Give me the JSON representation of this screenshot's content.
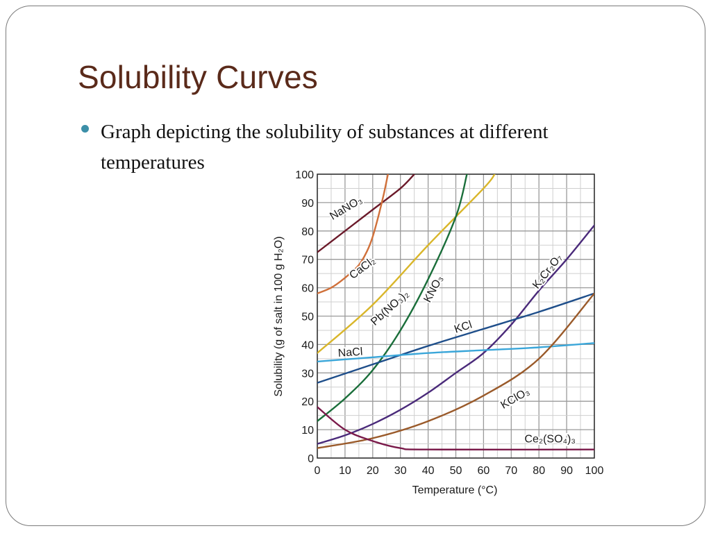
{
  "slide": {
    "title": "Solubility Curves",
    "bullet": "Graph depicting the solubility of substances at different temperatures",
    "colors": {
      "title": "#5a2a1a",
      "bullet": "#3c8fa8"
    }
  },
  "chart_data": {
    "type": "line",
    "title": "",
    "xlabel": "Temperature (°C)",
    "ylabel": "Solubility (g of salt in 100 g H₂O)",
    "xlim": [
      0,
      100
    ],
    "ylim": [
      0,
      100
    ],
    "x_ticks": [
      0,
      10,
      20,
      30,
      40,
      50,
      60,
      70,
      80,
      90,
      100
    ],
    "y_ticks": [
      0,
      10,
      20,
      30,
      40,
      50,
      60,
      70,
      80,
      90,
      100
    ],
    "grid": true,
    "legend": "none",
    "series": [
      {
        "name": "NaNO₃",
        "color": "#6b1a2a",
        "points": [
          [
            0,
            72.5
          ],
          [
            10,
            80
          ],
          [
            20,
            87.5
          ],
          [
            30,
            95
          ],
          [
            35,
            100
          ]
        ]
      },
      {
        "name": "CaCl₂",
        "color": "#d0703a",
        "points": [
          [
            0,
            58
          ],
          [
            5,
            60
          ],
          [
            10,
            63.5
          ],
          [
            15,
            68
          ],
          [
            18,
            73
          ],
          [
            20,
            78
          ],
          [
            22,
            85
          ],
          [
            24,
            93
          ],
          [
            25.5,
            100
          ]
        ]
      },
      {
        "name": "Pb(NO₃)₂",
        "color": "#d9b62a",
        "points": [
          [
            0,
            37
          ],
          [
            20,
            54
          ],
          [
            40,
            75
          ],
          [
            60,
            95
          ],
          [
            64,
            100
          ]
        ]
      },
      {
        "name": "KNO₃",
        "color": "#1a6e3a",
        "points": [
          [
            0,
            13
          ],
          [
            10,
            21
          ],
          [
            20,
            31
          ],
          [
            30,
            45
          ],
          [
            40,
            63
          ],
          [
            50,
            85
          ],
          [
            54,
            100
          ]
        ]
      },
      {
        "name": "K₂Cr₂O₇",
        "color": "#4a2a7a",
        "points": [
          [
            0,
            5
          ],
          [
            10,
            8
          ],
          [
            20,
            12
          ],
          [
            30,
            17
          ],
          [
            40,
            23
          ],
          [
            50,
            30
          ],
          [
            60,
            37
          ],
          [
            70,
            47
          ],
          [
            80,
            59
          ],
          [
            90,
            70
          ],
          [
            100,
            82
          ]
        ]
      },
      {
        "name": "KCl",
        "color": "#1e4e8a",
        "points": [
          [
            0,
            26.5
          ],
          [
            20,
            33
          ],
          [
            40,
            39.5
          ],
          [
            60,
            45.5
          ],
          [
            80,
            51.5
          ],
          [
            100,
            58
          ]
        ]
      },
      {
        "name": "NaCl",
        "color": "#3aa6d9",
        "points": [
          [
            0,
            34
          ],
          [
            20,
            35.5
          ],
          [
            40,
            37
          ],
          [
            60,
            38
          ],
          [
            80,
            39
          ],
          [
            100,
            40.5
          ]
        ]
      },
      {
        "name": "KClO₃",
        "color": "#9a5a2a",
        "points": [
          [
            0,
            3.5
          ],
          [
            20,
            7
          ],
          [
            40,
            13
          ],
          [
            60,
            22
          ],
          [
            80,
            35
          ],
          [
            100,
            58
          ]
        ]
      },
      {
        "name": "Ce₂(SO₄)₃",
        "color": "#7a1a4a",
        "points": [
          [
            0,
            18
          ],
          [
            10,
            10
          ],
          [
            20,
            6
          ],
          [
            30,
            3.5
          ],
          [
            40,
            3
          ],
          [
            100,
            3
          ]
        ]
      }
    ]
  }
}
